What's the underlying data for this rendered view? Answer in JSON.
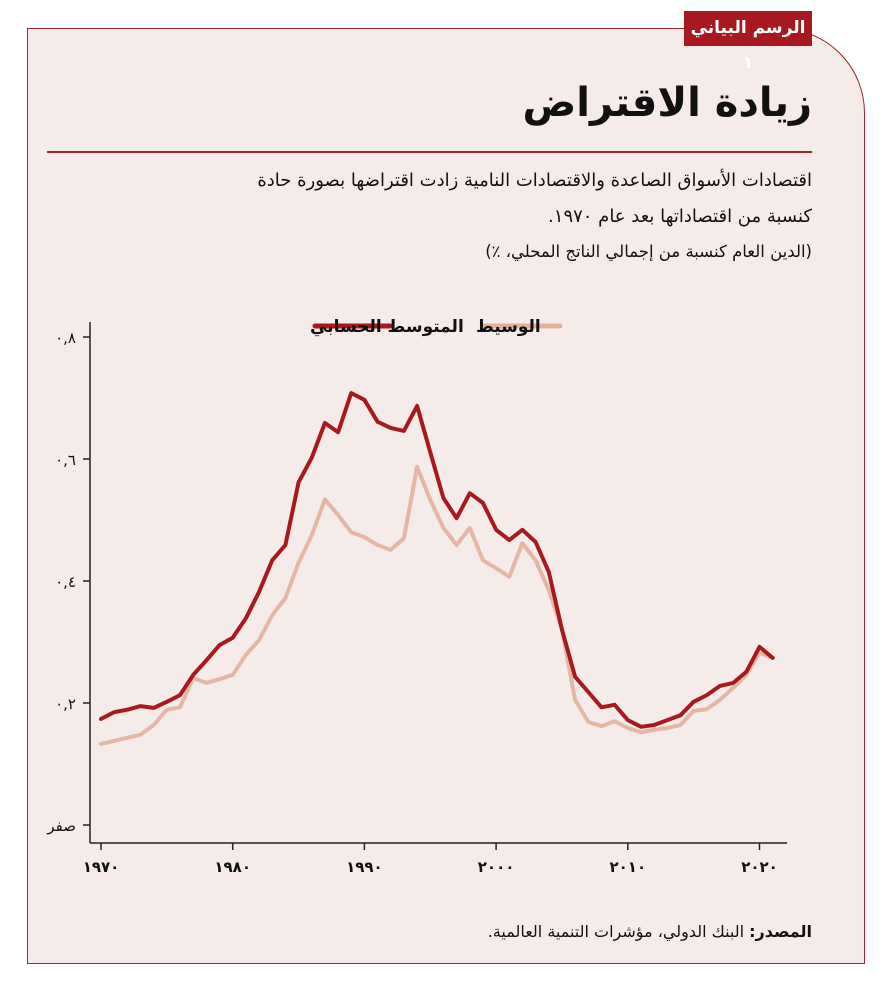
{
  "badge": "الرسم البياني ١",
  "title": "زيادة الاقتراض",
  "subtitle_line1": "اقتصادات الأسواق الصاعدة والاقتصادات النامية زادت اقتراضها بصورة حادة",
  "subtitle_line2": "كنسبة من اقتصاداتها بعد عام ١٩٧٠.",
  "unit_note": "(الدين العام كنسبة من إجمالي الناتج المحلي، ٪)",
  "source_label": "المصدر:",
  "source_text": " البنك الدولي، مؤشرات التنمية العالمية.",
  "colors": {
    "mean": "#a8191f",
    "median": "#e3b09c",
    "frame": "#a3262a",
    "background": "#f5ecea"
  },
  "chart_data": {
    "type": "line",
    "title": "",
    "xlabel": "",
    "ylabel": "",
    "xlim": [
      1970,
      2021
    ],
    "ylim": [
      0,
      0.8
    ],
    "grid": false,
    "legend_position": "top",
    "x_ticks": [
      1970,
      1980,
      1990,
      2000,
      2010,
      2020
    ],
    "x_tick_labels": [
      "١٩٧٠",
      "١٩٨٠",
      "١٩٩٠",
      "٢٠٠٠",
      "٢٠١٠",
      "٢٠٢٠"
    ],
    "y_ticks": [
      0,
      0.2,
      0.4,
      0.6,
      0.8
    ],
    "y_tick_labels": [
      "صفر",
      "٠,٢",
      "٠,٤",
      "٠,٦",
      "٠,٨"
    ],
    "x": [
      1970,
      1971,
      1972,
      1973,
      1974,
      1975,
      1976,
      1977,
      1978,
      1979,
      1980,
      1981,
      1982,
      1983,
      1984,
      1985,
      1986,
      1987,
      1988,
      1989,
      1990,
      1991,
      1992,
      1993,
      1994,
      1995,
      1996,
      1997,
      1998,
      1999,
      2000,
      2001,
      2002,
      2003,
      2004,
      2005,
      2006,
      2007,
      2008,
      2009,
      2010,
      2011,
      2012,
      2013,
      2014,
      2015,
      2016,
      2017,
      2018,
      2019,
      2020,
      2021
    ],
    "series": [
      {
        "name": "المتوسط الحسابي",
        "color": "#a8191f",
        "values": [
          0.174,
          0.185,
          0.189,
          0.195,
          0.192,
          0.202,
          0.213,
          0.246,
          0.27,
          0.295,
          0.307,
          0.339,
          0.382,
          0.434,
          0.459,
          0.562,
          0.602,
          0.659,
          0.644,
          0.708,
          0.697,
          0.661,
          0.651,
          0.646,
          0.687,
          0.611,
          0.536,
          0.503,
          0.544,
          0.528,
          0.484,
          0.467,
          0.484,
          0.464,
          0.415,
          0.32,
          0.243,
          0.218,
          0.193,
          0.197,
          0.172,
          0.161,
          0.164,
          0.172,
          0.18,
          0.202,
          0.213,
          0.228,
          0.233,
          0.251,
          0.292,
          0.274
        ]
      },
      {
        "name": "الوسيط",
        "color": "#e3b09c",
        "values": [
          0.133,
          0.138,
          0.143,
          0.148,
          0.164,
          0.189,
          0.193,
          0.241,
          0.233,
          0.239,
          0.246,
          0.279,
          0.303,
          0.344,
          0.372,
          0.43,
          0.475,
          0.534,
          0.508,
          0.48,
          0.472,
          0.459,
          0.451,
          0.47,
          0.587,
          0.533,
          0.487,
          0.459,
          0.487,
          0.434,
          0.421,
          0.407,
          0.462,
          0.434,
          0.385,
          0.32,
          0.205,
          0.169,
          0.162,
          0.17,
          0.159,
          0.152,
          0.156,
          0.159,
          0.164,
          0.187,
          0.19,
          0.205,
          0.225,
          0.246,
          0.282,
          0.274
        ]
      }
    ]
  }
}
